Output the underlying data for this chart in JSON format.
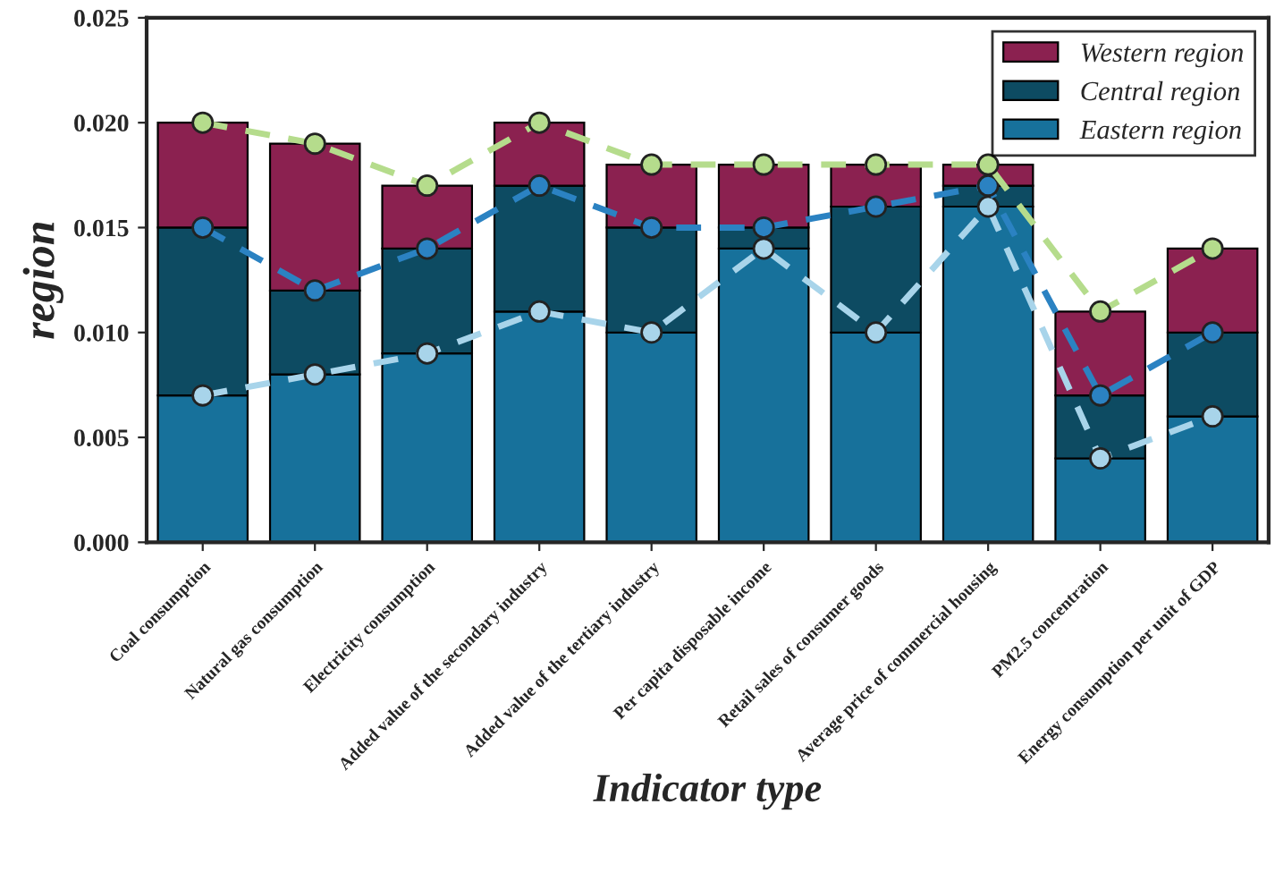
{
  "chart_data": {
    "type": "bar",
    "stacked": true,
    "xlabel": "Indicator type",
    "ylabel": "region",
    "categories": [
      "Coal consumption",
      "Natural gas consumption",
      "Electricity consumption",
      "Added value of the secondary industry",
      "Added value of the tertiary industry",
      "Per capita disposable income",
      "Retail sales of consumer goods",
      "Average price of commercial housing",
      "PM2.5 concentration",
      "Energy consumption per unit of GDP"
    ],
    "series": [
      {
        "name": "Eastern region",
        "color": "#17719b",
        "values": [
          0.007,
          0.008,
          0.009,
          0.011,
          0.01,
          0.014,
          0.01,
          0.016,
          0.004,
          0.006
        ]
      },
      {
        "name": "Central region",
        "color": "#0d4b62",
        "values": [
          0.008,
          0.004,
          0.005,
          0.006,
          0.005,
          0.001,
          0.006,
          0.001,
          0.003,
          0.004
        ]
      },
      {
        "name": "Western region",
        "color": "#8b2150",
        "values": [
          0.005,
          0.007,
          0.003,
          0.003,
          0.003,
          0.003,
          0.002,
          0.001,
          0.004,
          0.004
        ]
      },
      {
        "type": "line",
        "color": "#a8d4ea",
        "values": [
          0.007,
          0.008,
          0.009,
          0.011,
          0.01,
          0.014,
          0.01,
          0.016,
          0.004,
          0.006
        ]
      },
      {
        "type": "line",
        "color": "#2b82c2",
        "values": [
          0.015,
          0.012,
          0.014,
          0.017,
          0.015,
          0.015,
          0.016,
          0.017,
          0.007,
          0.01
        ]
      },
      {
        "type": "line",
        "color": "#b5dc8c",
        "values": [
          0.02,
          0.019,
          0.017,
          0.02,
          0.018,
          0.018,
          0.018,
          0.018,
          0.011,
          0.014
        ]
      }
    ],
    "ylim": [
      0,
      0.025
    ],
    "yticks": [
      {
        "value": 0,
        "label": "0.000"
      },
      {
        "value": 0.005,
        "label": "0.005"
      },
      {
        "value": 0.01,
        "label": "0.010"
      },
      {
        "value": 0.015,
        "label": "0.015"
      },
      {
        "value": 0.02,
        "label": "0.020"
      },
      {
        "value": 0.025,
        "label": "0.025"
      }
    ],
    "legend": "top right",
    "marker": "circle",
    "line_style": "dashed",
    "grid": false
  }
}
